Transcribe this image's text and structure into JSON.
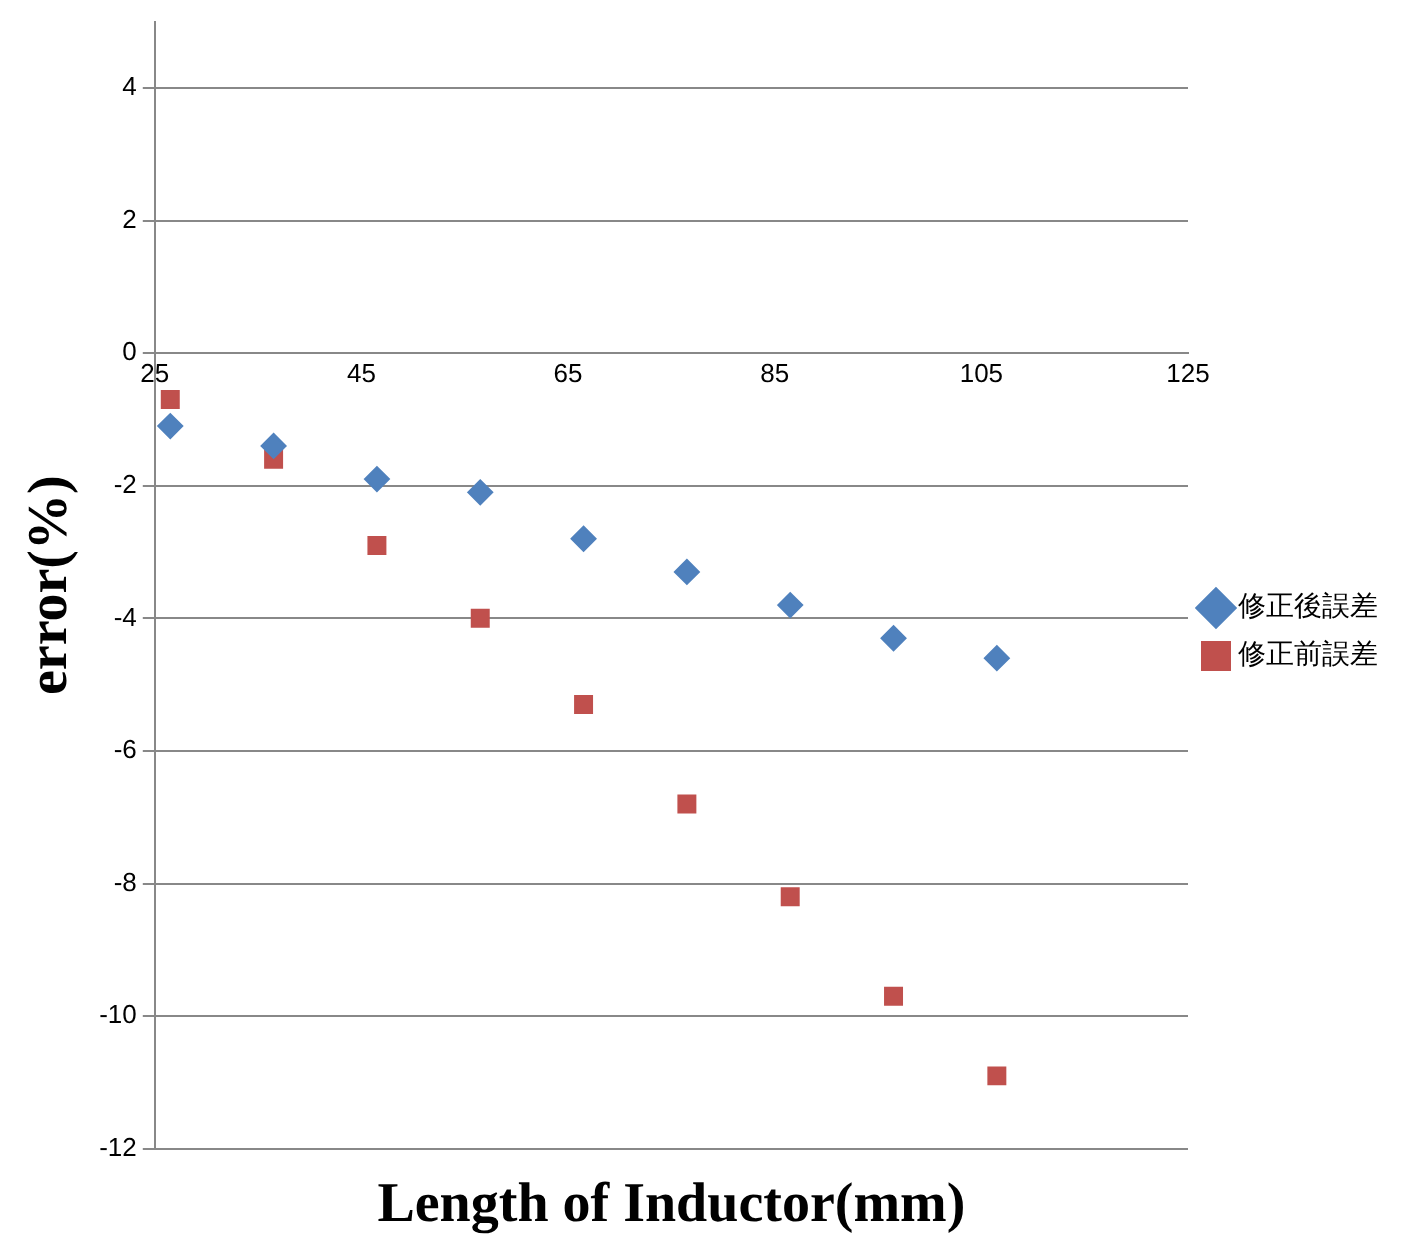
{
  "chart_data": {
    "type": "scatter",
    "xlabel": "Length of Inductor(mm)",
    "ylabel": "error(%)",
    "x": [
      26.5,
      36.5,
      46.5,
      56.5,
      66.5,
      76.5,
      86.5,
      96.5,
      106.5
    ],
    "series": [
      {
        "name": "修正後誤差",
        "color": "#4f81bd",
        "marker": "diamond",
        "values": [
          -1.1,
          -1.4,
          -1.9,
          -2.1,
          -2.8,
          -3.3,
          -3.8,
          -4.3,
          -4.6
        ]
      },
      {
        "name": "修正前誤差",
        "color": "#c0504d",
        "marker": "square",
        "values": [
          -0.7,
          -1.6,
          -2.9,
          -4.0,
          -5.3,
          -6.8,
          -8.2,
          -9.7,
          -10.9
        ]
      }
    ],
    "xlim": [
      25,
      125
    ],
    "xticks": [
      25,
      45,
      65,
      85,
      105,
      125
    ],
    "ylim": [
      -12,
      5
    ],
    "yticks": [
      -12,
      -10,
      -8,
      -6,
      -4,
      -2,
      0,
      2,
      4
    ],
    "grid": "y",
    "legend": "right"
  }
}
